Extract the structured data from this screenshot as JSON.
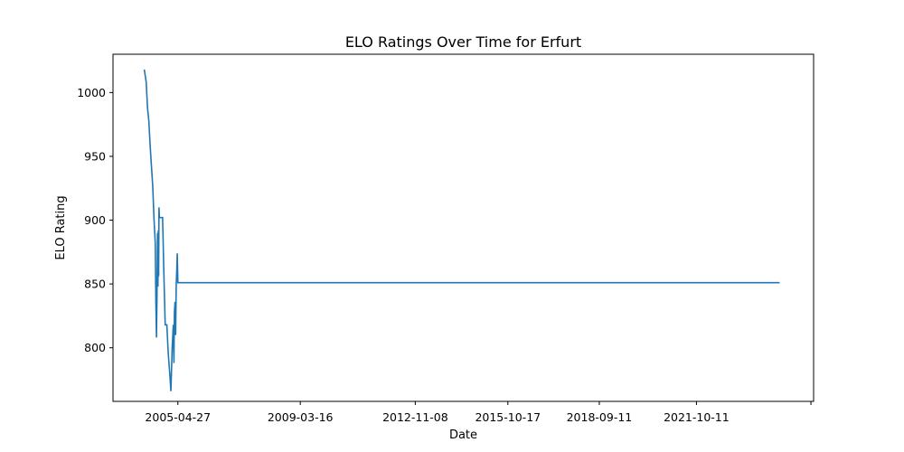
{
  "chart_data": {
    "type": "line",
    "title": "ELO Ratings Over Time for Erfurt",
    "xlabel": "Date",
    "ylabel": "ELO Rating",
    "x_ticks": [
      {
        "label": "2005-04-27",
        "value": "2005-04-27"
      },
      {
        "label": "2009-03-16",
        "value": "2009-03-16"
      },
      {
        "label": "2012-11-08",
        "value": "2012-11-08"
      },
      {
        "label": "2015-10-17",
        "value": "2015-10-17"
      },
      {
        "label": "2018-09-11",
        "value": "2018-09-11"
      },
      {
        "label": "2021-10-11",
        "value": "2021-10-11"
      },
      {
        "label": "",
        "value": "2025-05-30"
      }
    ],
    "y_ticks": [
      800,
      850,
      900,
      950,
      1000
    ],
    "xlim": [
      "2003-04-06",
      "2025-06-30"
    ],
    "ylim": [
      758,
      1030
    ],
    "grid": false,
    "color": "#1f77b4",
    "series": [
      {
        "x": [
          "2004-04-03",
          "2004-04-25",
          "2004-05-10",
          "2004-05-25",
          "2004-06-10",
          "2004-06-25",
          "2004-07-10",
          "2004-07-25",
          "2004-08-08",
          "2004-08-15",
          "2004-08-22",
          "2004-08-28",
          "2004-09-03",
          "2004-09-08",
          "2004-09-12",
          "2004-09-16",
          "2004-09-20",
          "2004-09-25",
          "2004-10-05",
          "2004-10-10",
          "2004-10-20",
          "2004-11-01",
          "2004-11-15",
          "2004-12-01",
          "2004-12-20",
          "2005-01-05",
          "2005-01-25",
          "2005-02-05",
          "2005-02-20",
          "2005-03-05",
          "2005-03-12",
          "2005-03-18",
          "2005-03-25",
          "2005-04-01",
          "2005-04-08",
          "2005-04-15",
          "2005-04-20",
          "2005-04-27",
          "2024-06-01"
        ],
        "y": [
          1018,
          1008,
          988,
          978,
          958,
          942,
          926,
          900,
          882,
          836,
          808,
          842,
          890,
          848,
          892,
          856,
          910,
          902,
          902,
          902,
          902,
          902,
          860,
          818,
          818,
          796,
          778,
          766,
          800,
          818,
          788,
          828,
          836,
          810,
          850,
          862,
          874,
          851,
          851
        ]
      }
    ]
  }
}
